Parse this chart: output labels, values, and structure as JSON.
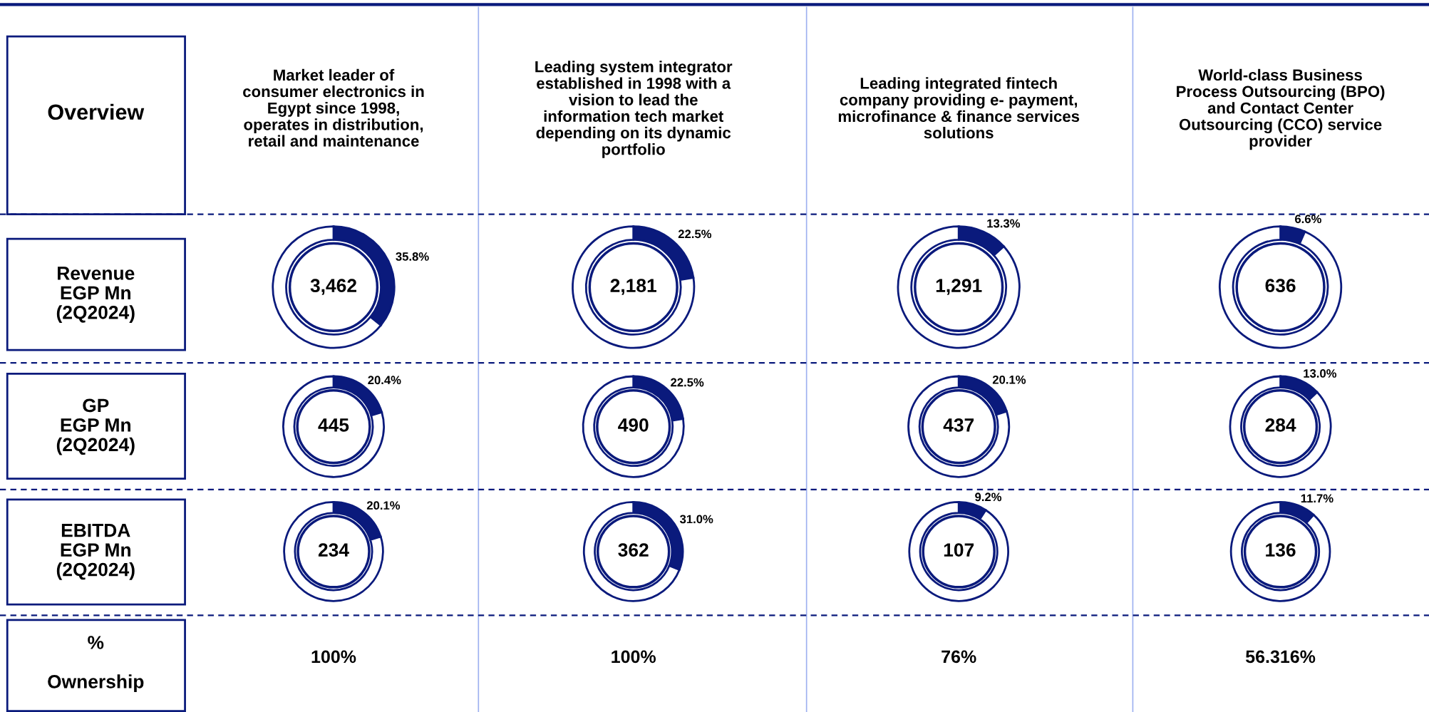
{
  "chart_data": [
    {
      "type": "other",
      "annotations": [
        "Overview",
        "Market leader of\nconsumer electronics in\nEgypt since 1998,\noperates in distribution,\nretail and maintenance",
        "Leading system integrator\nestablished in 1998 with a\nvision to lead the\ninformation tech market\ndepending on its dynamic\nportfolio",
        "Leading integrated fintech\ncompany providing e- payment,\nmicrofinance & finance services\nsolutions",
        "World-class Business\nProcess Outsourcing (BPO)\nand Contact Center\nOutsourcing (CCO) service\nprovider",
        "Revenue\nEGP Mn\n(2Q2024)",
        "GP\nEGP Mn\n(2Q2024)",
        "EBITDA\nEGP Mn\n(2Q2024)",
        "%\n\nOwnership",
        "100%",
        "100%",
        "76%",
        "56.316%"
      ]
    },
    {
      "type": "donut",
      "categories": [
        null,
        null
      ],
      "values": [
        35.8,
        64.2
      ],
      "colors": [
        "#0a1a7c",
        "#ffffff"
      ],
      "value_labels": [
        "35.8%",
        null
      ],
      "annotations": [
        "3,462"
      ]
    },
    {
      "type": "donut",
      "categories": [
        null,
        null
      ],
      "values": [
        22.5,
        77.5
      ],
      "colors": [
        "#0a1a7c",
        "#ffffff"
      ],
      "value_labels": [
        "22.5%",
        null
      ],
      "annotations": [
        "2,181"
      ]
    },
    {
      "type": "donut",
      "categories": [
        null,
        null
      ],
      "values": [
        13.3,
        86.7
      ],
      "colors": [
        "#0a1a7c",
        "#ffffff"
      ],
      "value_labels": [
        "13.3%",
        null
      ],
      "annotations": [
        "1,291"
      ]
    },
    {
      "type": "donut",
      "categories": [
        null,
        null
      ],
      "values": [
        6.6,
        93.4
      ],
      "colors": [
        "#0a1a7c",
        "#ffffff"
      ],
      "value_labels": [
        "6.6%",
        null
      ],
      "annotations": [
        "636"
      ]
    },
    {
      "type": "donut",
      "categories": [
        null,
        null
      ],
      "values": [
        20.4,
        79.6
      ],
      "colors": [
        "#0a1a7c",
        "#ffffff"
      ],
      "value_labels": [
        "20.4%",
        null
      ],
      "annotations": [
        "445"
      ]
    },
    {
      "type": "donut",
      "categories": [
        null,
        null
      ],
      "values": [
        22.5,
        77.5
      ],
      "colors": [
        "#0a1a7c",
        "#ffffff"
      ],
      "value_labels": [
        "22.5%",
        null
      ],
      "annotations": [
        "490"
      ]
    },
    {
      "type": "donut",
      "categories": [
        null,
        null
      ],
      "values": [
        20.1,
        79.9
      ],
      "colors": [
        "#0a1a7c",
        "#ffffff"
      ],
      "value_labels": [
        "20.1%",
        null
      ],
      "annotations": [
        "437"
      ]
    },
    {
      "type": "donut",
      "categories": [
        null,
        null
      ],
      "values": [
        13.0,
        87.0
      ],
      "colors": [
        "#0a1a7c",
        "#ffffff"
      ],
      "value_labels": [
        "13.0%",
        null
      ],
      "annotations": [
        "284"
      ]
    },
    {
      "type": "donut",
      "categories": [
        null,
        null
      ],
      "values": [
        20.1,
        79.9
      ],
      "colors": [
        "#0a1a7c",
        "#ffffff"
      ],
      "value_labels": [
        "20.1%",
        null
      ],
      "annotations": [
        "234"
      ]
    },
    {
      "type": "donut",
      "categories": [
        null,
        null
      ],
      "values": [
        31.0,
        69.0
      ],
      "colors": [
        "#0a1a7c",
        "#ffffff"
      ],
      "value_labels": [
        "31.0%",
        null
      ],
      "annotations": [
        "362"
      ]
    },
    {
      "type": "donut",
      "categories": [
        null,
        null
      ],
      "values": [
        9.2,
        90.8
      ],
      "colors": [
        "#0a1a7c",
        "#ffffff"
      ],
      "value_labels": [
        "9.2%",
        null
      ],
      "annotations": [
        "107"
      ]
    },
    {
      "type": "donut",
      "categories": [
        null,
        null
      ],
      "values": [
        11.7,
        88.3
      ],
      "colors": [
        "#0a1a7c",
        "#ffffff"
      ],
      "value_labels": [
        "11.7%",
        null
      ],
      "annotations": [
        "136"
      ]
    }
  ]
}
